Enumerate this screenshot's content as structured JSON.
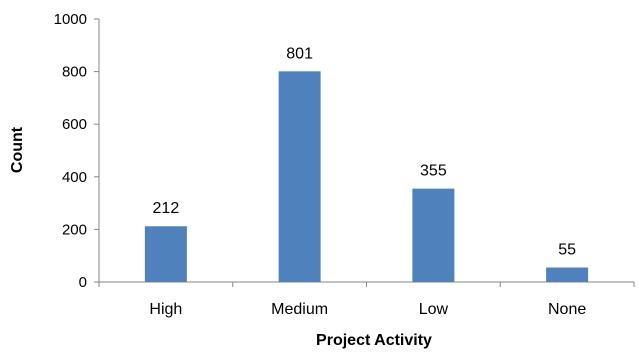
{
  "chart_data": {
    "type": "bar",
    "title": "",
    "xlabel": "Project Activity",
    "ylabel": "Count",
    "categories": [
      "High",
      "Medium",
      "Low",
      "None"
    ],
    "values": [
      212,
      801,
      355,
      55
    ],
    "data_labels": [
      "212",
      "801",
      "355",
      "55"
    ],
    "ylim": [
      0,
      1000
    ],
    "y_ticks": [
      0,
      200,
      400,
      600,
      800,
      1000
    ],
    "y_tick_labels": [
      "0",
      "200",
      "400",
      "600",
      "800",
      "1000"
    ],
    "grid": false,
    "legend": "none",
    "colors": {
      "bar": "#4F81BD",
      "axis": "#868686"
    }
  }
}
